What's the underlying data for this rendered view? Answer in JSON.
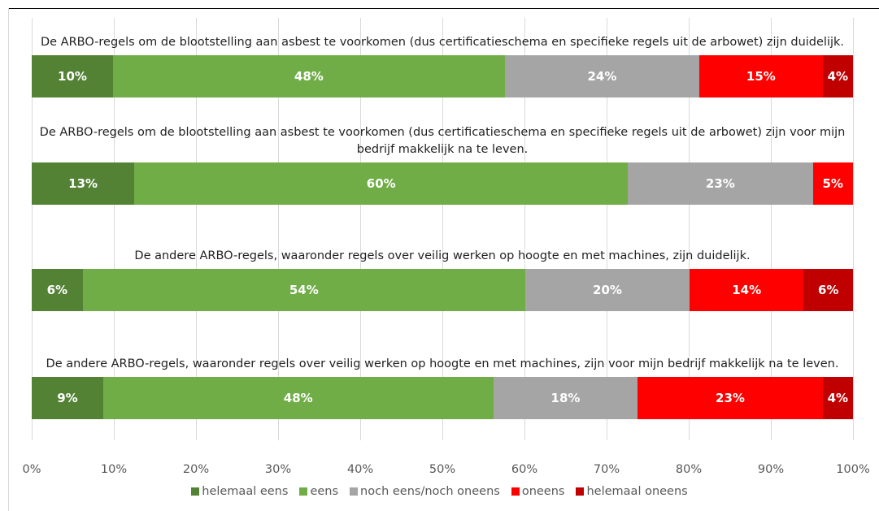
{
  "chart_data": {
    "type": "stacked-barh",
    "categories": [
      "De ARBO-regels om de blootstelling aan asbest te voorkomen (dus certificatieschema en specifieke regels uit de arbowet) zijn duidelijk.",
      "De ARBO-regels om de blootstelling aan asbest te voorkomen (dus certificatieschema en specifieke regels uit de arbowet) zijn voor mijn bedrijf makkelijk na te leven.",
      "De andere ARBO-regels, waaronder regels over veilig werken op hoogte en met machines, zijn duidelijk.",
      "De andere ARBO-regels, waaronder regels over veilig werken op hoogte en met machines, zijn voor mijn bedrijf makkelijk na te leven."
    ],
    "series": [
      {
        "name": "helemaal eens",
        "color": "#548235",
        "values": [
          9.9,
          12.5,
          6.2,
          8.7
        ],
        "value_labels": [
          "10%",
          "13%",
          "6%",
          "9%"
        ]
      },
      {
        "name": "eens",
        "color": "#70ad47",
        "values": [
          47.7,
          60.1,
          53.9,
          47.5
        ],
        "value_labels": [
          "48%",
          "60%",
          "54%",
          "48%"
        ]
      },
      {
        "name": "noch eens/noch oneens",
        "color": "#a5a5a5",
        "values": [
          23.7,
          22.5,
          20.0,
          17.6
        ],
        "value_labels": [
          "24%",
          "23%",
          "20%",
          "18%"
        ]
      },
      {
        "name": "oneens",
        "color": "#ff0000",
        "values": [
          15.0,
          4.9,
          13.9,
          22.5
        ],
        "value_labels": [
          "15%",
          "5%",
          "14%",
          "23%"
        ]
      },
      {
        "name": "helemaal oneens",
        "color": "#c00000",
        "values": [
          3.7,
          null,
          6.0,
          3.7
        ],
        "value_labels": [
          "4%",
          null,
          "6%",
          "4%"
        ]
      }
    ],
    "xlim": [
      0,
      100
    ],
    "xticks": [
      {
        "value": 0,
        "label": "0%"
      },
      {
        "value": 10,
        "label": "10%"
      },
      {
        "value": 20,
        "label": "20%"
      },
      {
        "value": 30,
        "label": "30%"
      },
      {
        "value": 40,
        "label": "40%"
      },
      {
        "value": 50,
        "label": "50%"
      },
      {
        "value": 60,
        "label": "60%"
      },
      {
        "value": 70,
        "label": "70%"
      },
      {
        "value": 80,
        "label": "80%"
      },
      {
        "value": 90,
        "label": "90%"
      },
      {
        "value": 100,
        "label": "100%"
      }
    ],
    "grid": true,
    "legend": "bottom"
  }
}
